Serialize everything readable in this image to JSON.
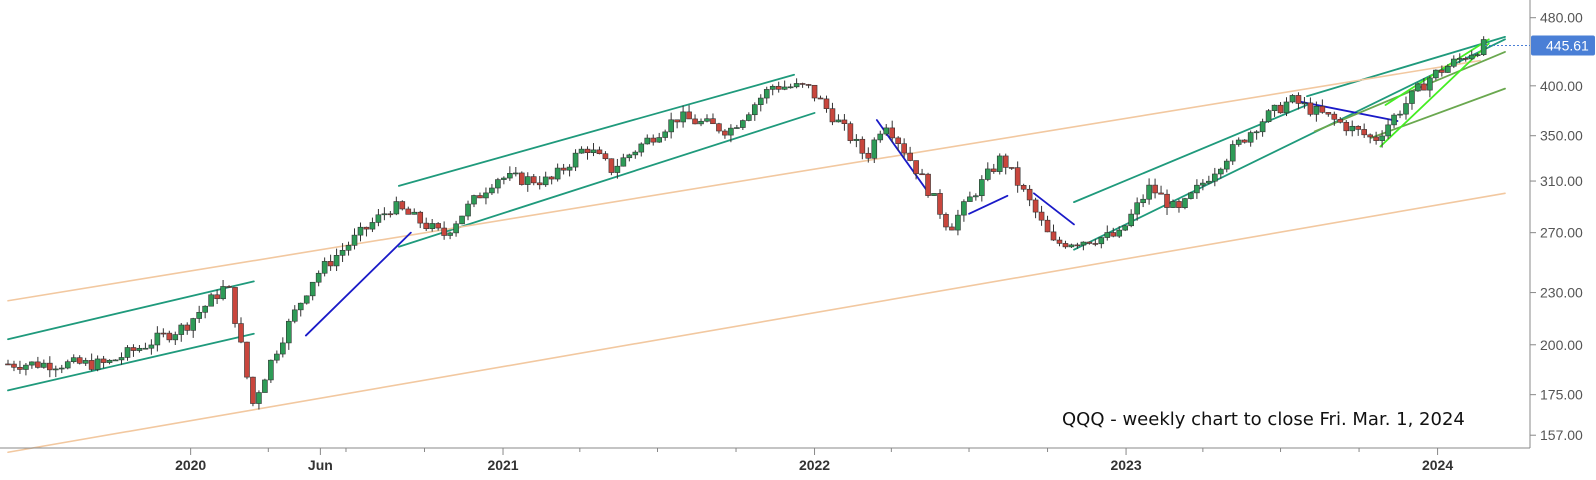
{
  "chart_data": {
    "type": "candlestick",
    "scale": "log",
    "grid": false,
    "caption": "QQQ - weekly chart to close Fri. Mar. 1, 2024",
    "last_price": 445.61,
    "last_price_label": "445.61",
    "ylim": [
      155,
      490
    ],
    "y_ticks": [
      {
        "value": 157,
        "label": "157.00"
      },
      {
        "value": 175,
        "label": "175.00"
      },
      {
        "value": 200,
        "label": "200.00"
      },
      {
        "value": 230,
        "label": "230.00"
      },
      {
        "value": 270,
        "label": "270.00"
      },
      {
        "value": 310,
        "label": "310.00"
      },
      {
        "value": 350,
        "label": "350.00"
      },
      {
        "value": 400,
        "label": "400.00"
      },
      {
        "value": 480,
        "label": "480.00"
      }
    ],
    "x_range": [
      "2019-06-01",
      "2024-03-20"
    ],
    "x_ticks": [
      {
        "date": "2020-01-01",
        "label": "2020"
      },
      {
        "date": "2020-06-01",
        "label": "Jun"
      },
      {
        "date": "2021-01-01",
        "label": "2021"
      },
      {
        "date": "2022-01-01",
        "label": "2022"
      },
      {
        "date": "2023-01-01",
        "label": "2023"
      },
      {
        "date": "2024-01-01",
        "label": "2024"
      }
    ],
    "x_minor_ticks": [
      "2020-04-01",
      "2020-07-01",
      "2020-10-01",
      "2021-04-01",
      "2021-07-01",
      "2021-10-01",
      "2022-04-01",
      "2022-07-01",
      "2022-10-01",
      "2023-04-01",
      "2023-07-01",
      "2023-10-01"
    ],
    "colors": {
      "up": "#2e9b57",
      "down": "#c9463d",
      "channel": "#1f9a7c",
      "long_trend": "#f2c8a0",
      "short_trend": "#1a1ac8",
      "recent_trend": "#44ee22",
      "mid_trend": "#6aa84f",
      "last_badge": "#4a7fd6"
    },
    "price_anchors": [
      [
        "2019-06-01",
        190
      ],
      [
        "2019-10-01",
        190
      ],
      [
        "2020-01-01",
        210
      ],
      [
        "2020-02-20",
        235
      ],
      [
        "2020-03-20",
        170
      ],
      [
        "2020-06-01",
        240
      ],
      [
        "2020-09-01",
        290
      ],
      [
        "2020-10-30",
        268
      ],
      [
        "2020-12-31",
        313
      ],
      [
        "2021-03-05",
        310
      ],
      [
        "2021-04-15",
        340
      ],
      [
        "2021-05-15",
        320
      ],
      [
        "2021-08-01",
        368
      ],
      [
        "2021-09-30",
        355
      ],
      [
        "2021-11-20",
        400
      ],
      [
        "2021-12-31",
        398
      ],
      [
        "2022-03-10",
        330
      ],
      [
        "2022-03-31",
        365
      ],
      [
        "2022-06-15",
        273
      ],
      [
        "2022-08-15",
        330
      ],
      [
        "2022-10-14",
        262
      ],
      [
        "2022-12-31",
        268
      ],
      [
        "2023-02-05",
        305
      ],
      [
        "2023-03-10",
        285
      ],
      [
        "2023-06-15",
        364
      ],
      [
        "2023-07-20",
        385
      ],
      [
        "2023-10-26",
        346
      ],
      [
        "2023-12-31",
        410
      ],
      [
        "2024-03-01",
        445.61
      ]
    ],
    "trendlines": [
      {
        "kind": "channel",
        "from": [
          "2019-06-01",
          203
        ],
        "to": [
          "2020-03-15",
          237
        ]
      },
      {
        "kind": "channel",
        "from": [
          "2019-06-01",
          177
        ],
        "to": [
          "2020-03-15",
          206
        ]
      },
      {
        "kind": "channel",
        "from": [
          "2020-09-01",
          306
        ],
        "to": [
          "2021-12-08",
          412
        ]
      },
      {
        "kind": "channel",
        "from": [
          "2020-09-01",
          260
        ],
        "to": [
          "2022-01-01",
          372
        ]
      },
      {
        "kind": "channel",
        "from": [
          "2022-11-01",
          293
        ],
        "to": [
          "2023-08-01",
          380
        ]
      },
      {
        "kind": "channel",
        "from": [
          "2022-11-01",
          258
        ],
        "to": [
          "2024-03-20",
          453
        ]
      },
      {
        "kind": "channel",
        "from": [
          "2023-08-01",
          389
        ],
        "to": [
          "2024-03-20",
          456
        ]
      },
      {
        "kind": "long_trend",
        "from": [
          "2019-06-01",
          225
        ],
        "to": [
          "2024-02-20",
          428
        ]
      },
      {
        "kind": "long_trend",
        "from": [
          "2019-06-01",
          150
        ],
        "to": [
          "2024-03-20",
          300
        ]
      },
      {
        "kind": "short_trend",
        "from": [
          "2020-05-15",
          205
        ],
        "to": [
          "2020-09-15",
          270
        ]
      },
      {
        "kind": "short_trend",
        "from": [
          "2022-03-15",
          365
        ],
        "to": [
          "2022-05-15",
          300
        ]
      },
      {
        "kind": "short_trend",
        "from": [
          "2022-07-01",
          284
        ],
        "to": [
          "2022-08-15",
          298
        ]
      },
      {
        "kind": "short_trend",
        "from": [
          "2022-09-15",
          300
        ],
        "to": [
          "2022-11-01",
          276
        ]
      },
      {
        "kind": "short_trend",
        "from": [
          "2023-07-20",
          384
        ],
        "to": [
          "2023-11-15",
          364
        ]
      },
      {
        "kind": "mid_trend",
        "from": [
          "2023-08-10",
          354
        ],
        "to": [
          "2024-03-20",
          438
        ]
      },
      {
        "kind": "mid_trend",
        "from": [
          "2023-10-15",
          348
        ],
        "to": [
          "2024-03-20",
          397
        ]
      },
      {
        "kind": "recent_trend",
        "from": [
          "2023-10-26",
          340
        ],
        "to": [
          "2024-03-01",
          448
        ]
      },
      {
        "kind": "recent_trend",
        "from": [
          "2023-11-01",
          380
        ],
        "to": [
          "2024-03-01",
          453
        ]
      }
    ]
  }
}
